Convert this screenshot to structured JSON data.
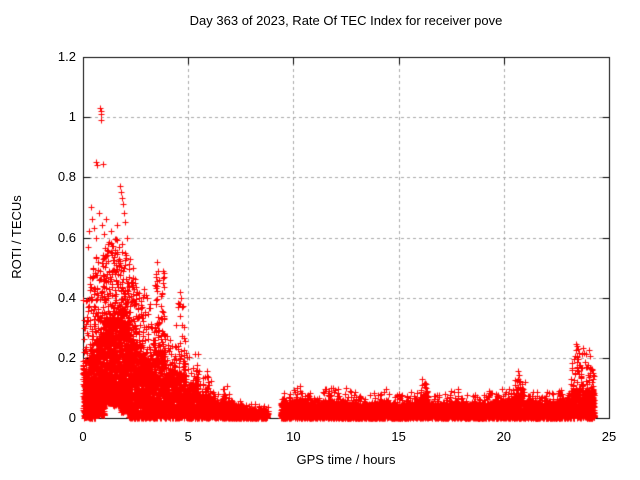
{
  "window": {
    "background": "#ffffff"
  },
  "chart_data": {
    "type": "scatter",
    "title": "Day 363 of 2023, Rate Of TEC Index for receiver pove",
    "xlabel": "GPS time / hours",
    "ylabel": "ROTI / TECUs",
    "xlim": [
      0,
      25
    ],
    "ylim": [
      0,
      1.2
    ],
    "xtick_values": [
      0,
      5,
      10,
      15,
      20,
      25
    ],
    "xtick_labels": [
      "0",
      "5",
      "10",
      "15",
      "20",
      "25"
    ],
    "ytick_values": [
      0,
      0.2,
      0.4,
      0.6,
      0.8,
      1.0,
      1.2
    ],
    "ytick_labels": [
      "0",
      "0.2",
      "0.4",
      "0.6",
      "0.8",
      "1",
      "1.2"
    ],
    "grid": true,
    "grid_color": "#a8a8a8",
    "border_color": "#000000",
    "marker": "plus",
    "marker_color": "#ff0000",
    "marker_size_px": 7,
    "series_name": "ROTI",
    "data_start_hour": 0.0,
    "data_end_hour": 24.3,
    "data_gap_hours": [
      8.8,
      9.4
    ],
    "seed": 1363,
    "segment_format": [
      "x_start",
      "x_end",
      "n_band",
      "band_min",
      "band_max",
      "n_halo",
      "halo_max"
    ],
    "density_segments": [
      [
        0.0,
        0.3,
        220,
        0,
        0.15,
        55,
        0.4
      ],
      [
        0.3,
        0.6,
        240,
        0,
        0.2,
        65,
        0.5
      ],
      [
        0.6,
        1.0,
        300,
        0.01,
        0.25,
        85,
        0.55
      ],
      [
        1.0,
        1.4,
        320,
        0.05,
        0.3,
        95,
        0.6
      ],
      [
        1.4,
        1.8,
        320,
        0.04,
        0.32,
        95,
        0.62
      ],
      [
        1.8,
        2.2,
        320,
        0.02,
        0.3,
        95,
        0.58
      ],
      [
        2.2,
        2.6,
        290,
        0,
        0.24,
        75,
        0.48
      ],
      [
        2.6,
        3.0,
        270,
        0,
        0.2,
        60,
        0.42
      ],
      [
        3.0,
        3.4,
        260,
        0,
        0.18,
        55,
        0.38
      ],
      [
        3.4,
        3.9,
        280,
        0,
        0.22,
        70,
        0.5
      ],
      [
        3.9,
        4.4,
        250,
        0,
        0.15,
        45,
        0.28
      ],
      [
        4.4,
        4.9,
        250,
        0,
        0.14,
        50,
        0.4
      ],
      [
        4.9,
        5.5,
        250,
        0,
        0.1,
        40,
        0.22
      ],
      [
        5.5,
        6.2,
        250,
        0,
        0.07,
        35,
        0.15
      ],
      [
        6.2,
        7.0,
        250,
        0,
        0.05,
        28,
        0.1
      ],
      [
        7.0,
        7.6,
        210,
        0,
        0.04,
        18,
        0.08
      ],
      [
        7.6,
        8.2,
        170,
        0,
        0.03,
        10,
        0.05
      ],
      [
        8.2,
        8.8,
        150,
        0,
        0.025,
        8,
        0.045
      ],
      [
        9.4,
        10.0,
        250,
        0,
        0.05,
        22,
        0.09
      ],
      [
        10.0,
        10.6,
        250,
        0,
        0.055,
        26,
        0.1
      ],
      [
        10.6,
        11.4,
        310,
        0,
        0.05,
        26,
        0.09
      ],
      [
        11.4,
        12.2,
        310,
        0,
        0.055,
        30,
        0.1
      ],
      [
        12.2,
        13.0,
        310,
        0,
        0.05,
        26,
        0.09
      ],
      [
        13.0,
        13.8,
        310,
        0,
        0.045,
        22,
        0.08
      ],
      [
        13.8,
        14.6,
        310,
        0,
        0.05,
        25,
        0.09
      ],
      [
        14.6,
        15.4,
        310,
        0,
        0.045,
        22,
        0.08
      ],
      [
        15.4,
        16.0,
        240,
        0,
        0.05,
        22,
        0.09
      ],
      [
        16.0,
        16.4,
        175,
        0,
        0.07,
        26,
        0.12
      ],
      [
        16.4,
        17.4,
        360,
        0,
        0.045,
        26,
        0.08
      ],
      [
        17.4,
        18.2,
        310,
        0,
        0.05,
        26,
        0.09
      ],
      [
        18.2,
        19.0,
        310,
        0,
        0.045,
        22,
        0.08
      ],
      [
        19.0,
        19.8,
        310,
        0,
        0.05,
        25,
        0.09
      ],
      [
        19.8,
        20.5,
        290,
        0,
        0.055,
        28,
        0.1
      ],
      [
        20.5,
        20.9,
        175,
        0,
        0.08,
        30,
        0.14
      ],
      [
        20.9,
        21.7,
        310,
        0,
        0.05,
        24,
        0.09
      ],
      [
        21.7,
        22.5,
        310,
        0,
        0.05,
        24,
        0.09
      ],
      [
        22.5,
        23.2,
        290,
        0,
        0.055,
        28,
        0.1
      ],
      [
        23.2,
        23.9,
        290,
        0,
        0.09,
        55,
        0.22
      ],
      [
        23.9,
        24.3,
        210,
        0,
        0.09,
        35,
        0.18
      ]
    ],
    "outliers": [
      [
        0.82,
        1.03
      ],
      [
        0.85,
        1.01
      ],
      [
        0.84,
        0.99
      ],
      [
        0.87,
        1.02
      ],
      [
        0.62,
        0.85
      ],
      [
        0.68,
        0.84
      ],
      [
        0.93,
        0.845
      ],
      [
        0.3,
        0.62
      ],
      [
        0.38,
        0.7
      ],
      [
        0.45,
        0.66
      ],
      [
        0.52,
        0.63
      ],
      [
        0.6,
        0.6
      ],
      [
        0.75,
        0.68
      ],
      [
        0.88,
        0.64
      ],
      [
        1.02,
        0.61
      ],
      [
        1.1,
        0.66
      ],
      [
        0.25,
        0.57
      ],
      [
        1.75,
        0.77
      ],
      [
        1.8,
        0.75
      ],
      [
        1.85,
        0.73
      ],
      [
        1.9,
        0.71
      ],
      [
        1.95,
        0.68
      ],
      [
        2.0,
        0.65
      ],
      [
        1.6,
        0.64
      ],
      [
        1.35,
        0.62
      ],
      [
        2.1,
        0.6
      ],
      [
        1.2,
        0.58
      ],
      [
        1.5,
        0.56
      ],
      [
        2.25,
        0.53
      ],
      [
        2.4,
        0.5
      ],
      [
        2.9,
        0.43
      ],
      [
        3.05,
        0.4
      ],
      [
        3.2,
        0.38
      ],
      [
        3.5,
        0.52
      ],
      [
        3.55,
        0.49
      ],
      [
        3.6,
        0.46
      ],
      [
        3.48,
        0.44
      ],
      [
        4.6,
        0.42
      ],
      [
        4.66,
        0.4
      ],
      [
        4.72,
        0.37
      ],
      [
        4.63,
        0.34
      ],
      [
        4.69,
        0.31
      ],
      [
        5.9,
        0.155
      ],
      [
        6.85,
        0.105
      ],
      [
        10.3,
        0.105
      ],
      [
        11.9,
        0.1
      ],
      [
        12.5,
        0.1
      ],
      [
        14.4,
        0.095
      ],
      [
        16.1,
        0.13
      ],
      [
        17.8,
        0.095
      ],
      [
        19.3,
        0.09
      ],
      [
        20.68,
        0.155
      ],
      [
        20.74,
        0.142
      ],
      [
        21.0,
        0.12
      ],
      [
        23.42,
        0.245
      ],
      [
        23.47,
        0.24
      ],
      [
        23.52,
        0.23
      ],
      [
        23.44,
        0.225
      ],
      [
        23.57,
        0.215
      ],
      [
        23.49,
        0.205
      ],
      [
        23.54,
        0.195
      ],
      [
        23.46,
        0.185
      ],
      [
        23.75,
        0.232
      ],
      [
        23.8,
        0.215
      ],
      [
        24.05,
        0.225
      ],
      [
        24.12,
        0.205
      ],
      [
        23.6,
        0.175
      ],
      [
        23.5,
        0.165
      ],
      [
        23.55,
        0.155
      ],
      [
        23.4,
        0.145
      ],
      [
        23.65,
        0.135
      ]
    ]
  }
}
